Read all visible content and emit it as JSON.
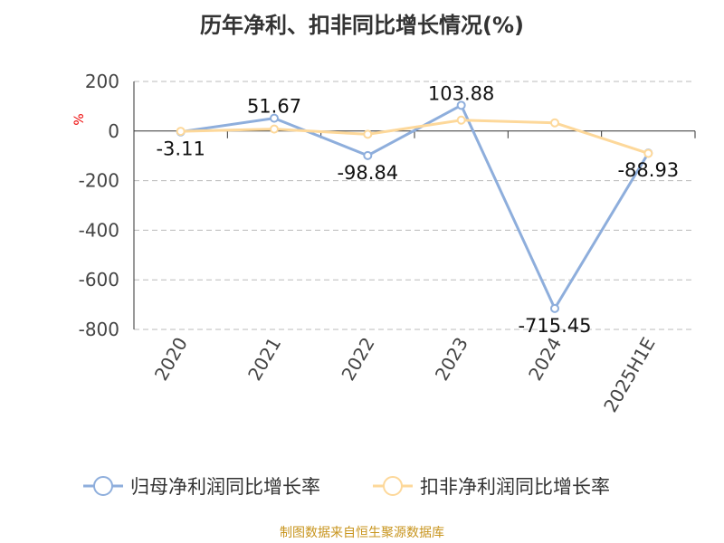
{
  "chart_data": {
    "type": "line",
    "title": "历年净利、扣非同比增长情况(%)",
    "ylabel": "%",
    "categories": [
      "2020",
      "2021",
      "2022",
      "2023",
      "2024",
      "2025H1E"
    ],
    "ylim": [
      -800,
      200
    ],
    "yticks": [
      200,
      0,
      -200,
      -400,
      -600,
      -800
    ],
    "grid": true,
    "legend_position": "bottom",
    "series": [
      {
        "name": "归母净利润同比增长率",
        "color": "#8eaedc",
        "values": [
          -3.11,
          51.67,
          -98.84,
          103.88,
          -715.45,
          -88.93
        ],
        "labels": [
          "-3.11",
          "51.67",
          "-98.84",
          "103.88",
          "-715.45",
          "-88.93"
        ]
      },
      {
        "name": "扣非净利润同比增长率",
        "color": "#fdd89a",
        "values": [
          -1,
          8,
          -13,
          44,
          33,
          -90
        ]
      }
    ]
  },
  "source": "制图数据来自恒生聚源数据库"
}
